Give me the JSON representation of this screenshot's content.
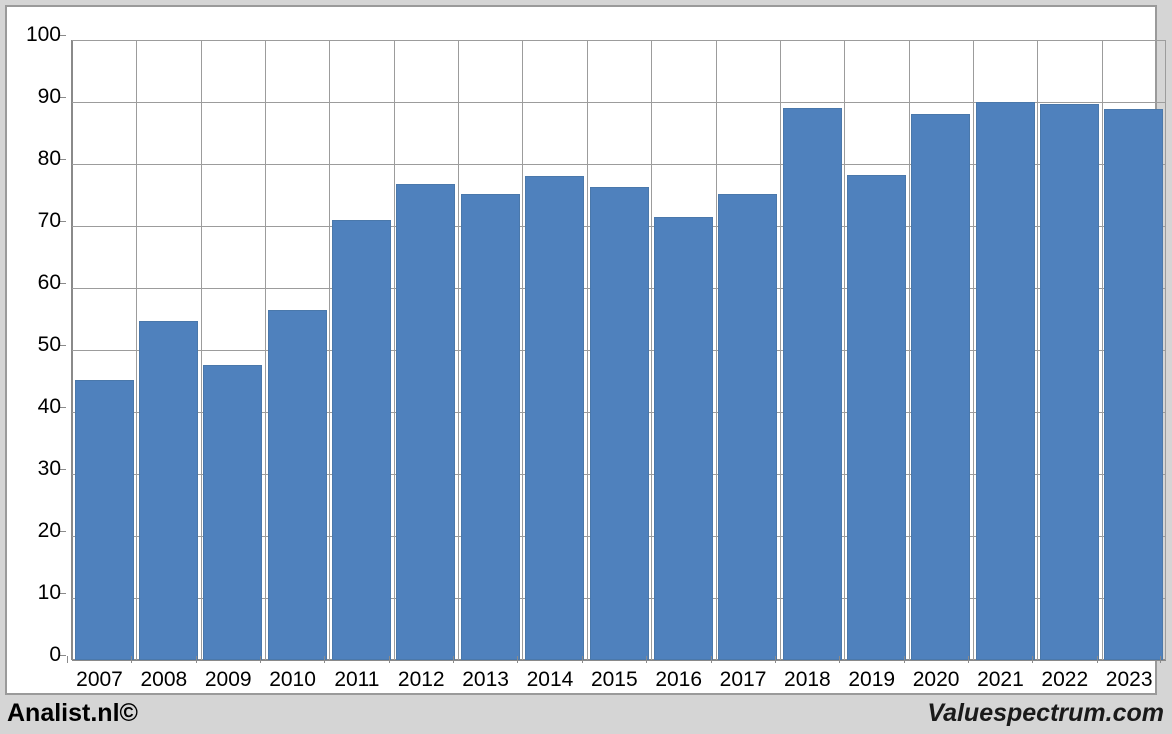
{
  "chart_data": {
    "type": "bar",
    "categories": [
      "2007",
      "2008",
      "2009",
      "2010",
      "2011",
      "2012",
      "2013",
      "2014",
      "2015",
      "2016",
      "2017",
      "2018",
      "2019",
      "2020",
      "2021",
      "2022",
      "2023"
    ],
    "values": [
      45.2,
      54.7,
      47.6,
      56.5,
      71.0,
      76.7,
      75.1,
      78.0,
      76.3,
      71.4,
      75.2,
      89.0,
      78.2,
      88.1,
      90.0,
      89.6,
      88.8
    ],
    "title": "",
    "xlabel": "",
    "ylabel": "",
    "ylim": [
      0,
      100
    ],
    "y_tick_step": 10,
    "y_tick_labels": [
      "0",
      "10",
      "20",
      "30",
      "40",
      "50",
      "60",
      "70",
      "80",
      "90",
      "100"
    ],
    "grid": true,
    "legend": "none",
    "bar_color": "#4f81bd"
  },
  "footer": {
    "left": "Analist.nl©",
    "right": "Valuespectrum.com"
  },
  "colors": {
    "background": "#d5d5d5",
    "plot_background": "#ffffff",
    "gridline": "#9c9c9c",
    "axis": "#8a8a8a",
    "bar": "#4f81bd",
    "text": "#000000"
  }
}
